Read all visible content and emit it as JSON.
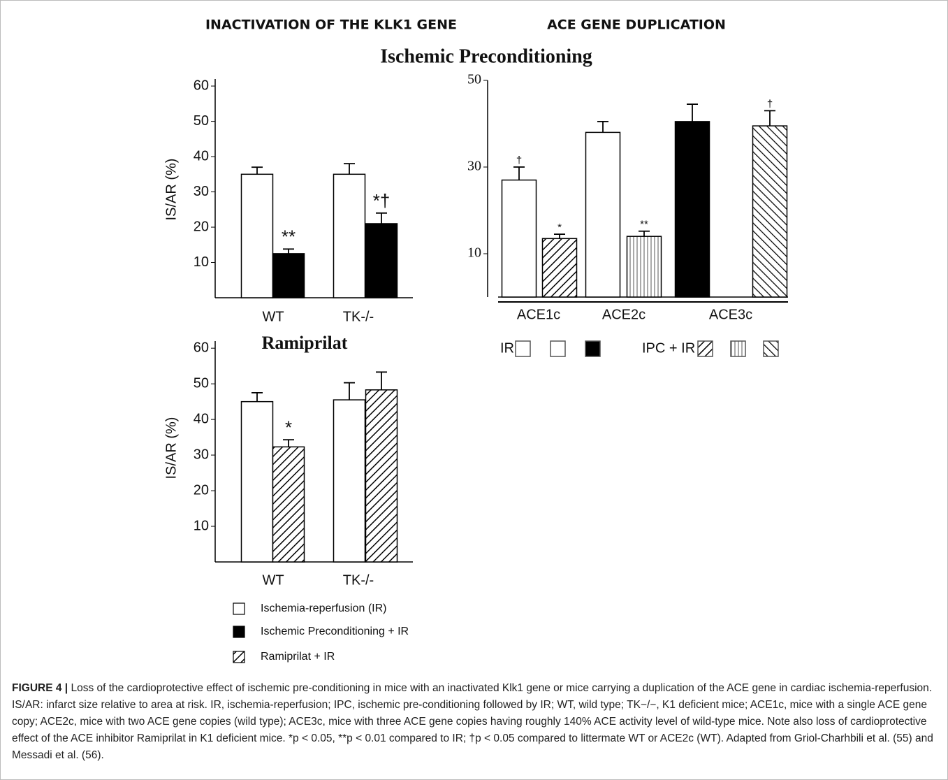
{
  "headings": [
    "INACTIVATION OF THE KLK1 GENE",
    "ACE GENE DUPLICATION"
  ],
  "section_title": "Ischemic Preconditioning",
  "chart_data": [
    {
      "type": "bar",
      "ylabel": "IS/AR (%)",
      "categories": [
        "WT",
        "TK-/-"
      ],
      "series": [
        {
          "name": "Ischemia-reperfusion (IR)",
          "color": "#ffffff",
          "values": [
            35,
            35
          ],
          "errors": [
            2,
            3
          ]
        },
        {
          "name": "Ischemic Preconditioning  + IR",
          "color": "#000000",
          "values": [
            12.5,
            21
          ],
          "errors": [
            1.3,
            3
          ],
          "annotations": [
            "**",
            "*†"
          ]
        }
      ],
      "ylim": [
        0,
        62
      ],
      "yticks": [
        10,
        20,
        30,
        40,
        50,
        60
      ]
    },
    {
      "type": "bar",
      "categories": [
        "ACE1c",
        "ACE2c",
        "ACE3c"
      ],
      "series": [
        {
          "name": "IR",
          "colors": [
            "#ffffff",
            "#ffffff",
            "#000000"
          ],
          "values": [
            27,
            38,
            40.5
          ],
          "errors": [
            3,
            2.5,
            4
          ],
          "annotations": [
            "†",
            null,
            null
          ]
        },
        {
          "name": "IPC + IR",
          "hatch": [
            "diagonal",
            "vertical",
            "back-diagonal"
          ],
          "values": [
            13.5,
            14,
            39.5
          ],
          "errors": [
            1,
            1.2,
            3.5
          ],
          "annotations": [
            "*",
            "**",
            "†"
          ]
        }
      ],
      "ylim": [
        0,
        50
      ],
      "yticks": [
        10,
        30,
        50
      ]
    },
    {
      "type": "bar",
      "title": "Ramiprilat",
      "ylabel": "IS/AR (%)",
      "categories": [
        "WT",
        "TK-/-"
      ],
      "series": [
        {
          "color": "#ffffff",
          "values": [
            45,
            45.5
          ],
          "errors": [
            2.5,
            4.8
          ]
        },
        {
          "name": "Ramiprilat + IR",
          "hatch": [
            "diagonal",
            "diagonal"
          ],
          "values": [
            32.3,
            48.3
          ],
          "errors": [
            2,
            5
          ],
          "annotations": [
            "*",
            null
          ]
        }
      ],
      "ylim": [
        0,
        62
      ],
      "yticks": [
        10,
        20,
        30,
        40,
        50,
        60
      ]
    }
  ],
  "caption": {
    "label": "FIGURE 4 |",
    "text": "Loss of the cardioprotective effect of ischemic pre-conditioning in mice with an inactivated Klk1 gene or mice carrying a duplication of the ACE gene in cardiac ischemia-reperfusion. IS/AR: infarct size relative to area at risk. IR, ischemia-reperfusion; IPC, ischemic pre-conditioning followed by IR; WT, wild type; TK−/−, K1 deficient mice; ACE1c, mice with a single ACE gene copy; ACE2c, mice with two ACE gene copies (wild type); ACE3c, mice with three ACE gene copies having roughly 140% ACE activity level of wild-type mice. Note also loss of cardioprotective effect of the ACE inhibitor Ramiprilat in K1 deficient mice. *p < 0.05, **p < 0.01 compared to IR; †p < 0.05 compared to littermate WT or ACE2c (WT). Adapted from Griol-Charhbili et al. (55) and Messadi et al. (56)."
  }
}
